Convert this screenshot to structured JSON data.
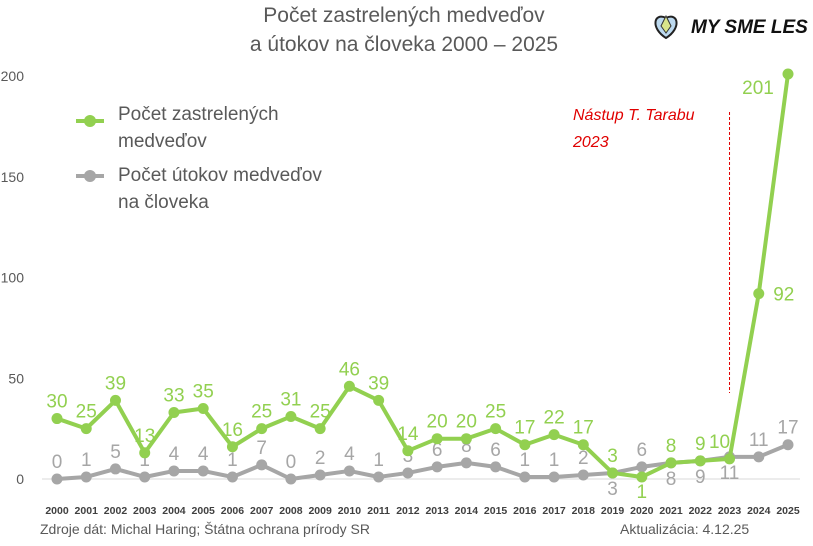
{
  "chart_data": {
    "type": "line",
    "title": [
      "Počet zastrelených medveďov",
      "a útokov na človeka 2000 – 2025"
    ],
    "x": [
      2000,
      2001,
      2002,
      2003,
      2004,
      2005,
      2006,
      2007,
      2008,
      2009,
      2010,
      2011,
      2012,
      2013,
      2014,
      2015,
      2016,
      2017,
      2018,
      2019,
      2020,
      2021,
      2022,
      2023,
      2024,
      2025
    ],
    "series": [
      {
        "name": "Počet zastrelených medveďov",
        "legend_lines": [
          "Počet zastrelených",
          "medveďov"
        ],
        "color": "#92d050",
        "values": [
          30,
          25,
          39,
          13,
          33,
          35,
          16,
          25,
          31,
          25,
          46,
          39,
          14,
          20,
          20,
          25,
          17,
          22,
          17,
          3,
          1,
          8,
          9,
          10,
          92,
          201
        ]
      },
      {
        "name": "Počet útokov medveďov na človeka",
        "legend_lines": [
          "Počet útokov medveďov",
          "na človeka"
        ],
        "color": "#a6a6a6",
        "values": [
          0,
          1,
          5,
          1,
          4,
          4,
          1,
          7,
          0,
          2,
          4,
          1,
          3,
          6,
          8,
          6,
          1,
          1,
          2,
          3,
          6,
          8,
          9,
          11,
          11,
          17
        ]
      }
    ],
    "ylim": [
      0,
      200
    ],
    "yticks": [
      0,
      50,
      100,
      150,
      200
    ],
    "legend_position": "top-left",
    "annotation": {
      "lines": [
        "Nástup T. Tarabu",
        "2023"
      ],
      "x": 2023,
      "color": "#e00000"
    },
    "xlabel": "",
    "ylabel": ""
  },
  "logo_text": "MY SME LES",
  "footer": {
    "source": "Zdroje dát: Michal Haring; Štátna ochrana prírody SR",
    "updated": "Aktualizácia: 4.12.25"
  }
}
